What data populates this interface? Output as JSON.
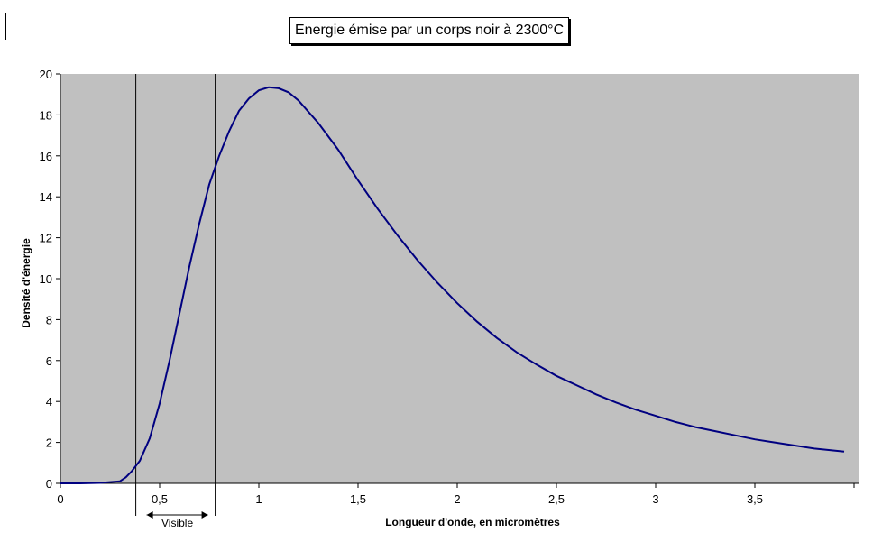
{
  "chart_data": {
    "type": "line",
    "title": "Energie émise par un corps noir à 2300°C",
    "xlabel": "Longueur d'onde, en micromètres",
    "ylabel": "Densité d'énergie",
    "xlim": [
      0,
      4
    ],
    "ylim": [
      0,
      20
    ],
    "x_ticks": [
      "0",
      "0,5",
      "1",
      "1,5",
      "2",
      "2,5",
      "3",
      "3,5"
    ],
    "x_tick_values": [
      0,
      0.5,
      1,
      1.5,
      2,
      2.5,
      3,
      3.5
    ],
    "y_ticks": [
      "0",
      "2",
      "4",
      "6",
      "8",
      "10",
      "12",
      "14",
      "16",
      "18",
      "20"
    ],
    "y_tick_values": [
      0,
      2,
      4,
      6,
      8,
      10,
      12,
      14,
      16,
      18,
      20
    ],
    "grid": false,
    "background_color": "#c0c0c0",
    "line_color": "#000080",
    "series": [
      {
        "x": [
          0,
          0.1,
          0.2,
          0.3,
          0.33,
          0.36,
          0.4,
          0.45,
          0.5,
          0.55,
          0.6,
          0.65,
          0.7,
          0.75,
          0.8,
          0.85,
          0.9,
          0.95,
          1.0,
          1.05,
          1.1,
          1.15,
          1.2,
          1.3,
          1.4,
          1.5,
          1.6,
          1.7,
          1.8,
          1.9,
          2.0,
          2.1,
          2.2,
          2.3,
          2.4,
          2.5,
          2.6,
          2.7,
          2.8,
          2.9,
          3.0,
          3.1,
          3.2,
          3.3,
          3.4,
          3.5,
          3.6,
          3.7,
          3.8,
          3.95
        ],
        "y": [
          0,
          0,
          0.02,
          0.1,
          0.3,
          0.6,
          1.1,
          2.2,
          3.9,
          6.0,
          8.3,
          10.6,
          12.7,
          14.6,
          16.0,
          17.2,
          18.2,
          18.8,
          19.2,
          19.35,
          19.3,
          19.1,
          18.7,
          17.6,
          16.3,
          14.8,
          13.4,
          12.1,
          10.9,
          9.8,
          8.8,
          7.9,
          7.1,
          6.4,
          5.8,
          5.25,
          4.8,
          4.35,
          3.95,
          3.6,
          3.3,
          3.0,
          2.75,
          2.55,
          2.35,
          2.15,
          2.0,
          1.85,
          1.7,
          1.55
        ]
      }
    ],
    "markers": [
      {
        "x": 0.38
      },
      {
        "x": 0.78
      }
    ],
    "annotation": {
      "label": "Visible",
      "from": 0.38,
      "to": 0.78
    }
  }
}
